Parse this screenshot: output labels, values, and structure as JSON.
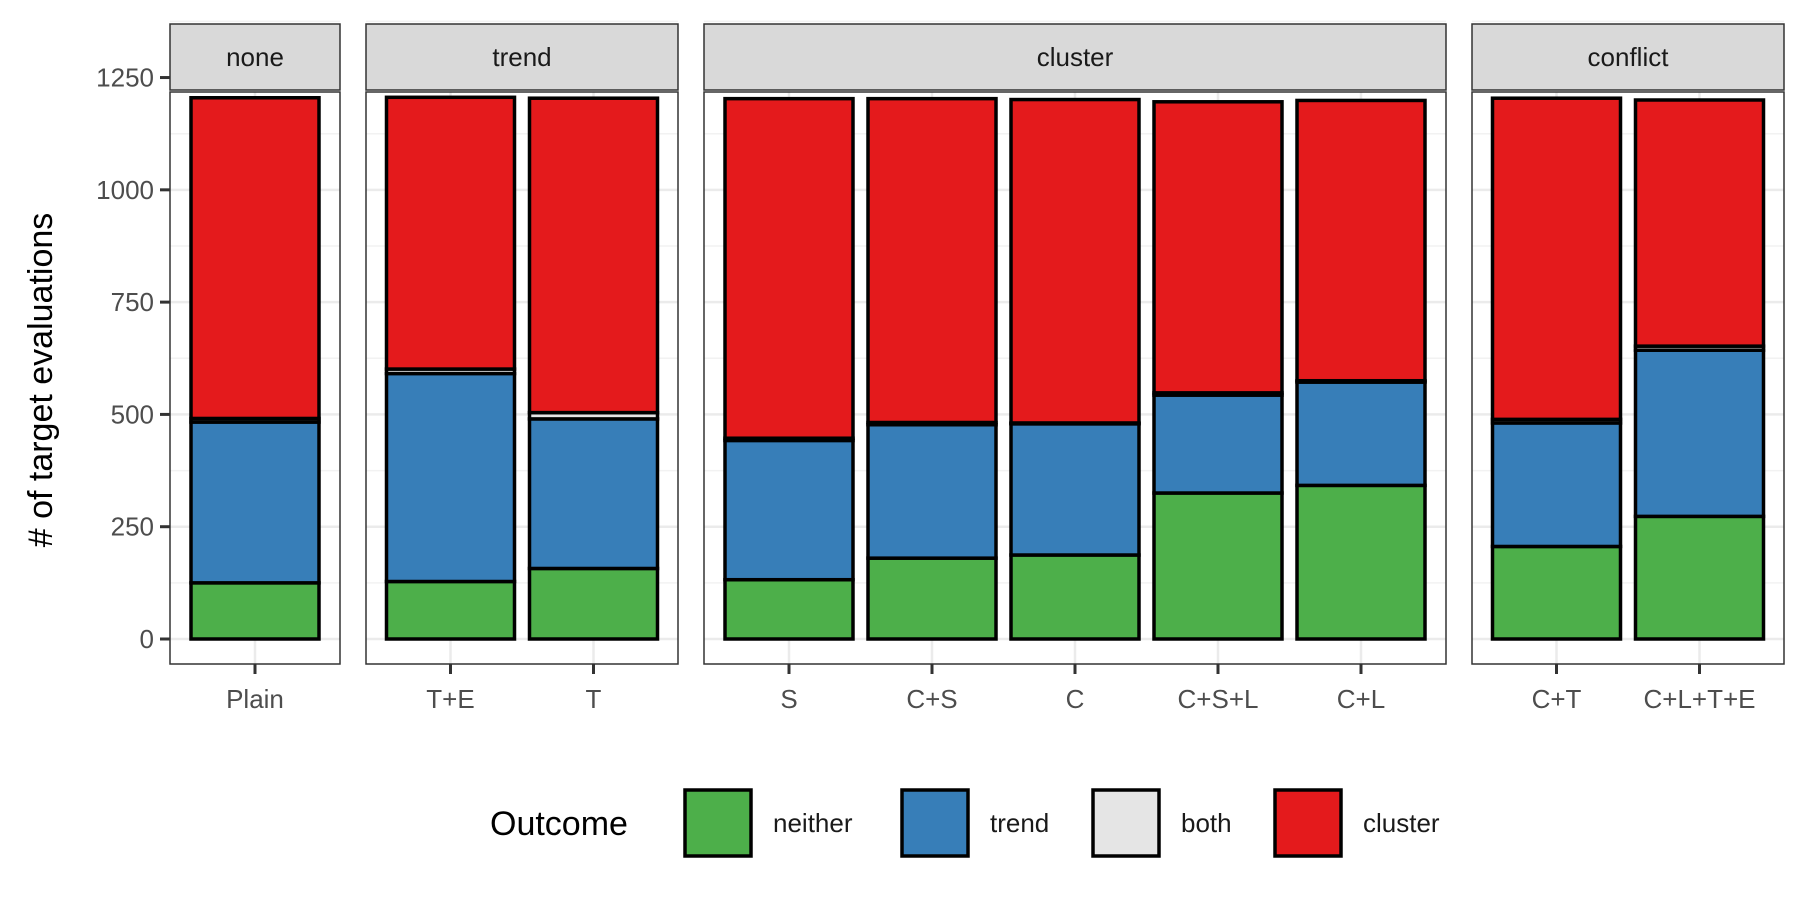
{
  "chart_data": {
    "type": "bar",
    "stacked": true,
    "faceted": true,
    "ylabel": "# of target evaluations",
    "ylim": [
      0,
      1400
    ],
    "yticks": [
      0,
      250,
      500,
      750,
      1000,
      1250
    ],
    "grid": true,
    "legend": {
      "title": "Outcome",
      "position": "bottom",
      "items": [
        {
          "key": "neither",
          "label": "neither",
          "color": "#4daf4a"
        },
        {
          "key": "trend",
          "label": "trend",
          "color": "#377eb8"
        },
        {
          "key": "both",
          "label": "both",
          "color": "#e5e5e5"
        },
        {
          "key": "cluster",
          "label": "cluster",
          "color": "#e41a1c"
        }
      ]
    },
    "series_order": [
      "neither",
      "trend",
      "both",
      "cluster"
    ],
    "facets": [
      {
        "strip": "none",
        "bars": [
          {
            "category": "Plain",
            "neither": 125,
            "trend": 358,
            "both": 8,
            "cluster": 714
          }
        ]
      },
      {
        "strip": "trend",
        "bars": [
          {
            "category": "T+E",
            "neither": 128,
            "trend": 463,
            "both": 10,
            "cluster": 605
          },
          {
            "category": "T",
            "neither": 157,
            "trend": 333,
            "both": 14,
            "cluster": 700
          }
        ]
      },
      {
        "strip": "cluster",
        "bars": [
          {
            "category": "S",
            "neither": 132,
            "trend": 310,
            "both": 5,
            "cluster": 756
          },
          {
            "category": "C+S",
            "neither": 180,
            "trend": 297,
            "both": 5,
            "cluster": 721
          },
          {
            "category": "C",
            "neither": 187,
            "trend": 292,
            "both": 2,
            "cluster": 720
          },
          {
            "category": "C+S+L",
            "neither": 325,
            "trend": 218,
            "both": 5,
            "cluster": 648
          },
          {
            "category": "C+L",
            "neither": 342,
            "trend": 230,
            "both": 3,
            "cluster": 624
          }
        ]
      },
      {
        "strip": "conflict",
        "bars": [
          {
            "category": "C+T",
            "neither": 206,
            "trend": 275,
            "both": 8,
            "cluster": 715
          },
          {
            "category": "C+L+T+E",
            "neither": 273,
            "trend": 370,
            "both": 9,
            "cluster": 548
          }
        ]
      }
    ]
  }
}
